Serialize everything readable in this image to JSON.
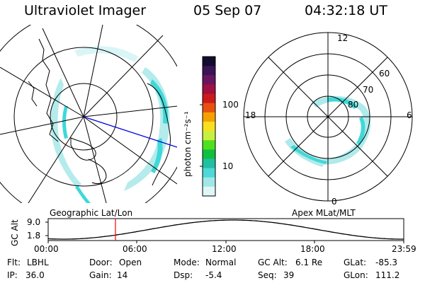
{
  "header": {
    "title": "Ultraviolet Imager",
    "date": "05 Sep 07",
    "time": "04:32:18 UT"
  },
  "colorbar": {
    "unit_label": "photon cm⁻²s⁻¹",
    "tick_labels": [
      "100",
      "10"
    ],
    "colors": [
      "#120b2e",
      "#3a1454",
      "#6a1560",
      "#a01040",
      "#cc1a1a",
      "#e85010",
      "#f5a000",
      "#f8e020",
      "#c8f040",
      "#50e020",
      "#10c040",
      "#20c0a0",
      "#50d8d8",
      "#a0e8e8",
      "#e0f6f6"
    ]
  },
  "left_panel": {
    "label": "Geographic Lat/Lon"
  },
  "right_panel": {
    "label": "Apex MLat/MLT",
    "clock_labels": [
      "12",
      "18",
      "6",
      "0"
    ],
    "lat_labels": [
      "60",
      "70",
      "80"
    ]
  },
  "timeline": {
    "axis_label": "GC Alt",
    "y_ticks": [
      "9.0",
      "1.8"
    ],
    "time_ticks": [
      "00:00",
      "06:00",
      "12:00",
      "18:00",
      "23:59"
    ],
    "marker_time": "04:32:18",
    "marker_color": "#ff0000"
  },
  "info": {
    "row1": {
      "filter_label": "Flt:",
      "filter_value": "LBHL",
      "door_label": "Door:",
      "door_value": "Open",
      "mode_label": "Mode:",
      "mode_value": "Normal",
      "gcalt_label": "GC Alt:",
      "gcalt_value": "6.1 Re",
      "glat_label": "GLat:",
      "glat_value": "-85.3"
    },
    "row2": {
      "ip_label": "IP:",
      "ip_value": "36.0",
      "gain_label": "Gain:",
      "gain_value": "14",
      "dsp_label": "Dsp:",
      "dsp_value": "-5.4",
      "seq_label": "Seq:",
      "seq_value": "39",
      "glon_label": "GLon:",
      "glon_value": "111.2"
    }
  }
}
